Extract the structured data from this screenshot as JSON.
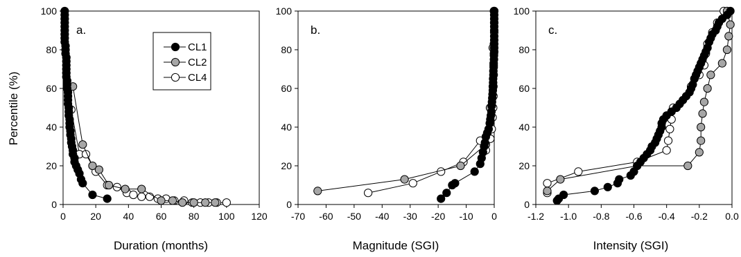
{
  "figure": {
    "ylabel": "Percentile (%)"
  },
  "legend": {
    "entries": [
      {
        "label": "CL1",
        "fill": "#000000"
      },
      {
        "label": "CL2",
        "fill": "#a6a6a6"
      },
      {
        "label": "CL4",
        "fill": "#ffffff"
      }
    ]
  },
  "chart_data": [
    {
      "type": "line",
      "panel_label": "a.",
      "xlabel": "Duration (months)",
      "ylabel": "Percentile (%)",
      "xlim": [
        0,
        120
      ],
      "ylim": [
        0,
        100
      ],
      "xticks": [
        0,
        20,
        40,
        60,
        80,
        100,
        120
      ],
      "yticks": [
        0,
        20,
        40,
        60,
        80,
        100
      ],
      "legend_position": "top-right",
      "series": [
        {
          "name": "CL1",
          "fill": "#000000",
          "x": [
            1,
            1,
            1,
            1,
            1,
            1,
            1,
            1,
            1,
            1.5,
            1.5,
            1.5,
            2,
            2,
            2,
            2,
            2,
            2,
            2.5,
            2.5,
            2.5,
            3,
            3,
            3,
            3,
            3.5,
            3.5,
            3.5,
            4,
            4,
            4,
            4.5,
            4.5,
            5,
            5,
            5.5,
            6,
            6,
            7,
            7,
            8,
            9,
            10,
            11,
            12,
            18,
            27
          ],
          "y": [
            100,
            98,
            96,
            94,
            92,
            90,
            88,
            86,
            84,
            82,
            80,
            78,
            76,
            74,
            72,
            70,
            68,
            66,
            64,
            62,
            60,
            58,
            56,
            54,
            52,
            50,
            48,
            46,
            44,
            42,
            40,
            38,
            36,
            34,
            32,
            30,
            28,
            26,
            24,
            22,
            20,
            18,
            16,
            13,
            11,
            5,
            3
          ]
        },
        {
          "name": "CL2",
          "fill": "#a6a6a6",
          "x": [
            6,
            12,
            18,
            22,
            28,
            38,
            48,
            60,
            67,
            73,
            80,
            87,
            93
          ],
          "y": [
            61,
            31,
            20,
            18,
            10,
            8,
            8,
            2,
            2,
            1,
            1,
            1,
            1
          ]
        },
        {
          "name": "CL4",
          "fill": "#ffffff",
          "x": [
            5,
            10,
            14,
            20,
            27,
            33,
            39,
            43,
            48,
            53,
            58,
            63,
            68,
            74,
            79,
            84,
            89,
            94,
            100
          ],
          "y": [
            49,
            26,
            26,
            17,
            10,
            9,
            6,
            5,
            4,
            4,
            3,
            3,
            2,
            2,
            1,
            1,
            1,
            1,
            1
          ]
        }
      ]
    },
    {
      "type": "line",
      "panel_label": "b.",
      "xlabel": "Magnitude (SGI)",
      "xlim": [
        -70,
        0
      ],
      "ylim": [
        0,
        100
      ],
      "xticks": [
        -70,
        -60,
        -50,
        -40,
        -30,
        -20,
        -10,
        0
      ],
      "yticks": [
        0,
        20,
        40,
        60,
        80,
        100
      ],
      "series": [
        {
          "name": "CL1",
          "fill": "#000000",
          "x": [
            0,
            0,
            0,
            0,
            0,
            0,
            0,
            0,
            0,
            0,
            0,
            -0.1,
            -0.1,
            -0.2,
            -0.2,
            -0.3,
            -0.3,
            -0.4,
            -0.4,
            -0.5,
            -0.5,
            -0.6,
            -0.7,
            -0.8,
            -0.9,
            -1,
            -1.2,
            -1.4,
            -1.6,
            -2,
            -2.5,
            -3,
            -3.3,
            -3.6,
            -4,
            -4.5,
            -5,
            -7,
            -14,
            -15,
            -17,
            -19
          ],
          "y": [
            100,
            98,
            96,
            94,
            92,
            90,
            87,
            85,
            83,
            81,
            79,
            77,
            75,
            73,
            71,
            69,
            67,
            65,
            63,
            61,
            59,
            57,
            55,
            53,
            51,
            48,
            46,
            44,
            42,
            39,
            37,
            35,
            32,
            30,
            27,
            24,
            21,
            17,
            11,
            10,
            6,
            3
          ]
        },
        {
          "name": "CL2",
          "fill": "#a6a6a6",
          "x": [
            -0.1,
            -0.5,
            -1.5,
            -3,
            -12,
            -32,
            -63
          ],
          "y": [
            100,
            81,
            50,
            31,
            20,
            13,
            7
          ]
        },
        {
          "name": "CL4",
          "fill": "#ffffff",
          "x": [
            0,
            0,
            0,
            -0.1,
            -0.1,
            -0.2,
            -0.2,
            -0.3,
            -0.3,
            -0.4,
            -0.6,
            -0.9,
            -1.4,
            -3,
            -5,
            -11,
            -19,
            -29,
            -45
          ],
          "y": [
            100,
            94,
            89,
            83,
            78,
            72,
            67,
            61,
            56,
            50,
            45,
            39,
            34,
            28,
            33,
            22,
            17,
            11,
            6
          ]
        }
      ]
    },
    {
      "type": "line",
      "panel_label": "c.",
      "xlabel": "Intensity (SGI)",
      "xlim": [
        -1.2,
        0
      ],
      "ylim": [
        0,
        100
      ],
      "xticks": [
        -1.2,
        -1.0,
        -0.8,
        -0.6,
        -0.4,
        -0.2,
        0.0
      ],
      "xtick_labels": [
        "-1.2",
        "-1.0",
        "-0.8",
        "-0.6",
        "-0.4",
        "-0.2",
        "0.0"
      ],
      "yticks": [
        0,
        20,
        40,
        60,
        80,
        100
      ],
      "series": [
        {
          "name": "CL1",
          "fill": "#000000",
          "x": [
            -0.01,
            -0.03,
            -0.06,
            -0.08,
            -0.09,
            -0.1,
            -0.12,
            -0.13,
            -0.14,
            -0.15,
            -0.16,
            -0.17,
            -0.18,
            -0.19,
            -0.2,
            -0.21,
            -0.22,
            -0.23,
            -0.24,
            -0.25,
            -0.26,
            -0.28,
            -0.3,
            -0.32,
            -0.34,
            -0.37,
            -0.4,
            -0.42,
            -0.43,
            -0.43,
            -0.44,
            -0.45,
            -0.46,
            -0.47,
            -0.49,
            -0.5,
            -0.52,
            -0.54,
            -0.56,
            -0.58,
            -0.6,
            -0.62,
            -0.69,
            -0.7,
            -0.76,
            -0.84,
            -1.03,
            -1.06,
            -1.07
          ],
          "y": [
            100,
            98,
            96,
            94,
            92,
            90,
            88,
            86,
            84,
            81,
            79,
            77,
            75,
            73,
            71,
            69,
            67,
            65,
            62,
            60,
            58,
            56,
            54,
            52,
            50,
            48,
            46,
            44,
            42,
            40,
            38,
            36,
            34,
            32,
            30,
            28,
            26,
            24,
            22,
            20,
            17,
            15,
            13,
            11,
            9,
            7,
            5,
            3,
            2
          ]
        },
        {
          "name": "CL2",
          "fill": "#a6a6a6",
          "x": [
            -0.03,
            -0.01,
            -0.02,
            -0.03,
            -0.06,
            -0.13,
            -0.15,
            -0.17,
            -0.18,
            -0.19,
            -0.19,
            -0.2,
            -0.27,
            -0.58,
            -1.05,
            -1.13
          ],
          "y": [
            100,
            93,
            87,
            80,
            73,
            67,
            60,
            53,
            47,
            40,
            33,
            27,
            20,
            20,
            13,
            7
          ]
        },
        {
          "name": "CL4",
          "fill": "#ffffff",
          "x": [
            -0.05,
            -0.09,
            -0.12,
            -0.15,
            -0.16,
            -0.17,
            -0.2,
            -0.25,
            -0.36,
            -0.37,
            -0.38,
            -0.39,
            -0.4,
            -0.58,
            -0.94,
            -1.13,
            -1.13
          ],
          "y": [
            100,
            94,
            89,
            83,
            78,
            72,
            67,
            61,
            50,
            44,
            39,
            33,
            28,
            22,
            17,
            11,
            6
          ]
        }
      ]
    }
  ]
}
